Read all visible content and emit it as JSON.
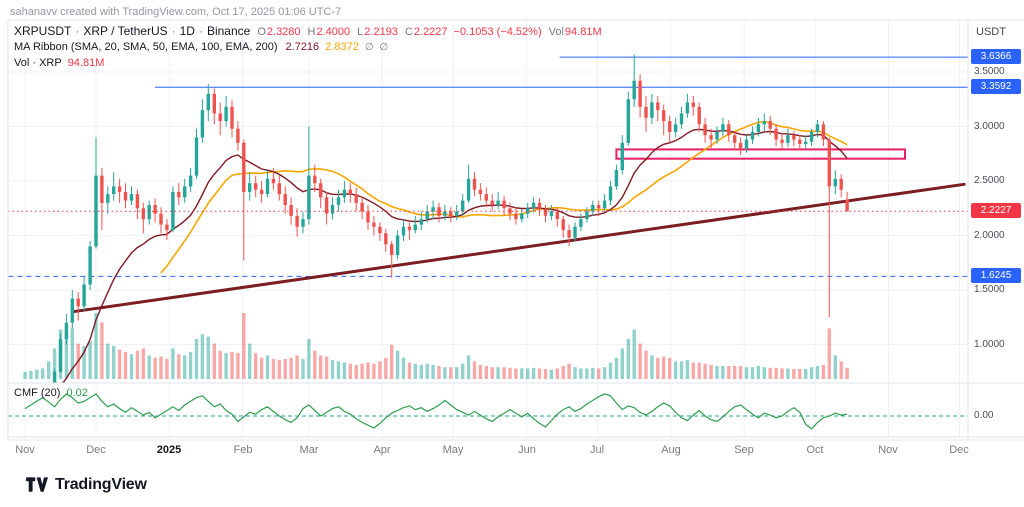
{
  "watermark": "sahanavv created with TradingView.com, Oct 17, 2025 01:06 UTC-7",
  "legend": {
    "symbol": "XRPUSDT",
    "separator": "·",
    "description": "XRP / TetherUS",
    "interval": "1D",
    "exchange": "Binance",
    "ohlc": {
      "o_label": "O",
      "o_value": "2.3280",
      "h_label": "H",
      "h_value": "2.4000",
      "l_label": "L",
      "l_value": "2.2193",
      "c_label": "C",
      "c_value": "2.2227",
      "change": "−0.1053 (−4.52%)",
      "vol_label": "Vol",
      "vol_value": "94.81M"
    },
    "ma_ribbon": {
      "label": "MA Ribbon (SMA, 20, SMA, 50, EMA, 100, EMA, 200)",
      "value1": "2.7216",
      "value2": "2.8372",
      "icon1": "∅",
      "icon2": "∅"
    },
    "volume_row": {
      "label": "Vol · XRP",
      "value": "94.81M"
    }
  },
  "price_axis": {
    "currency": "USDT",
    "ticks": [
      {
        "label": "3.5000",
        "price": 3.5
      },
      {
        "label": "3.0000",
        "price": 3.0
      },
      {
        "label": "2.5000",
        "price": 2.5
      },
      {
        "label": "2.0000",
        "price": 2.0
      },
      {
        "label": "1.5000",
        "price": 1.5
      },
      {
        "label": "1.0000",
        "price": 1.0
      }
    ],
    "badges": [
      {
        "label": "3.6366",
        "price": 3.6366,
        "bg": "#2962ff"
      },
      {
        "label": "3.3592",
        "price": 3.3592,
        "bg": "#2962ff"
      },
      {
        "label": "2.2227",
        "price": 2.2227,
        "bg": "#f23645"
      },
      {
        "label": "1.6245",
        "price": 1.6245,
        "bg": "#2962ff"
      }
    ]
  },
  "time_axis": {
    "ticks": [
      {
        "label": "Nov",
        "day": 0
      },
      {
        "label": "Dec",
        "day": 30
      },
      {
        "label": "2025",
        "day": 61,
        "bold": true
      },
      {
        "label": "Feb",
        "day": 92
      },
      {
        "label": "Mar",
        "day": 120
      },
      {
        "label": "Apr",
        "day": 151
      },
      {
        "label": "May",
        "day": 181
      },
      {
        "label": "Jun",
        "day": 212
      },
      {
        "label": "Jul",
        "day": 242
      },
      {
        "label": "Aug",
        "day": 273
      },
      {
        "label": "Sep",
        "day": 304
      },
      {
        "label": "Oct",
        "day": 334
      },
      {
        "label": "Nov",
        "day": 365
      },
      {
        "label": "Dec",
        "day": 395
      }
    ]
  },
  "cmf_legend": {
    "label": "CMF (20)",
    "value": "0.02",
    "zero_label": "0.00"
  },
  "footer": {
    "brand": "TradingView"
  },
  "colors": {
    "up": "#26a69a",
    "down": "#ef5350",
    "vol_up": "rgba(38,166,154,0.5)",
    "vol_down": "rgba(239,83,80,0.5)",
    "grid": "#eef1f6",
    "border": "#e0e3eb",
    "axis_text": "#787b86",
    "text": "#131722",
    "red": "#f23645",
    "blue": "#2962ff",
    "pink": "#e91e63",
    "trend": "#7b1d21",
    "ma_fast": "#801922",
    "ma_slow": "#f7a600",
    "cmf_line": "#2f9e4f",
    "zero_line": "#26a69a"
  },
  "chart_data": {
    "type": "candlestick",
    "symbol": "XRPUSDT",
    "exchange": "Binance",
    "interval": "1D",
    "start": "2024-11-01",
    "end": "2025-10-17",
    "days_per_candle": 2.5,
    "last_ohlc": {
      "open": 2.328,
      "high": 2.4,
      "low": 2.2193,
      "close": 2.2227,
      "change": -0.1053,
      "change_pct": -4.52,
      "volume": "94.81M"
    },
    "ma_ribbon_values": [
      2.7216,
      2.8372
    ],
    "y_axis": {
      "min": 0.65,
      "max": 3.98,
      "ticks": [
        1.0,
        1.5,
        2.0,
        2.5,
        3.0,
        3.5
      ]
    },
    "candles": [
      [
        0.5,
        0.52,
        0.49,
        0.51,
        60
      ],
      [
        0.51,
        0.54,
        0.5,
        0.53,
        70
      ],
      [
        0.53,
        0.56,
        0.52,
        0.55,
        80
      ],
      [
        0.55,
        0.58,
        0.54,
        0.57,
        90
      ],
      [
        0.57,
        0.64,
        0.56,
        0.62,
        150
      ],
      [
        0.62,
        0.78,
        0.61,
        0.75,
        260
      ],
      [
        0.75,
        1.1,
        0.74,
        1.05,
        420
      ],
      [
        1.05,
        1.28,
        1.0,
        1.2,
        380
      ],
      [
        1.2,
        1.5,
        1.15,
        1.42,
        430
      ],
      [
        1.42,
        1.48,
        1.22,
        1.35,
        300
      ],
      [
        1.35,
        1.62,
        1.3,
        1.55,
        280
      ],
      [
        1.55,
        1.95,
        1.5,
        1.9,
        320
      ],
      [
        1.9,
        2.9,
        1.88,
        2.55,
        560
      ],
      [
        2.55,
        2.62,
        2.05,
        2.3,
        480
      ],
      [
        2.3,
        2.45,
        2.2,
        2.38,
        300
      ],
      [
        2.38,
        2.58,
        2.32,
        2.45,
        280
      ],
      [
        2.45,
        2.52,
        2.3,
        2.4,
        250
      ],
      [
        2.4,
        2.48,
        2.25,
        2.32,
        230
      ],
      [
        2.32,
        2.45,
        2.28,
        2.38,
        210
      ],
      [
        2.38,
        2.42,
        2.15,
        2.25,
        240
      ],
      [
        2.25,
        2.3,
        2.02,
        2.15,
        260
      ],
      [
        2.15,
        2.32,
        2.1,
        2.28,
        200
      ],
      [
        2.28,
        2.34,
        2.12,
        2.2,
        180
      ],
      [
        2.2,
        2.26,
        2.02,
        2.1,
        190
      ],
      [
        2.1,
        2.15,
        1.96,
        2.05,
        170
      ],
      [
        2.05,
        2.45,
        2.03,
        2.4,
        260
      ],
      [
        2.4,
        2.48,
        2.28,
        2.35,
        210
      ],
      [
        2.35,
        2.52,
        2.3,
        2.45,
        200
      ],
      [
        2.45,
        2.62,
        2.4,
        2.55,
        230
      ],
      [
        2.55,
        2.98,
        2.52,
        2.9,
        340
      ],
      [
        2.9,
        3.25,
        2.85,
        3.15,
        380
      ],
      [
        3.15,
        3.39,
        3.05,
        3.3,
        360
      ],
      [
        3.3,
        3.35,
        3.02,
        3.12,
        300
      ],
      [
        3.12,
        3.22,
        2.92,
        3.05,
        240
      ],
      [
        3.05,
        3.28,
        3.0,
        3.18,
        220
      ],
      [
        3.18,
        3.24,
        2.9,
        2.98,
        230
      ],
      [
        2.98,
        3.05,
        2.78,
        2.85,
        220
      ],
      [
        2.85,
        2.88,
        1.77,
        2.4,
        560
      ],
      [
        2.4,
        2.58,
        2.32,
        2.48,
        300
      ],
      [
        2.48,
        2.55,
        2.35,
        2.42,
        220
      ],
      [
        2.42,
        2.5,
        2.3,
        2.38,
        180
      ],
      [
        2.38,
        2.6,
        2.35,
        2.52,
        200
      ],
      [
        2.52,
        2.62,
        2.42,
        2.48,
        170
      ],
      [
        2.48,
        2.55,
        2.32,
        2.38,
        160
      ],
      [
        2.38,
        2.45,
        2.2,
        2.28,
        170
      ],
      [
        2.28,
        2.35,
        2.1,
        2.18,
        180
      ],
      [
        2.18,
        2.25,
        1.99,
        2.08,
        200
      ],
      [
        2.08,
        2.22,
        2.02,
        2.15,
        170
      ],
      [
        2.15,
        3.0,
        2.1,
        2.55,
        340
      ],
      [
        2.55,
        2.65,
        2.4,
        2.48,
        240
      ],
      [
        2.48,
        2.52,
        2.25,
        2.35,
        200
      ],
      [
        2.35,
        2.4,
        2.1,
        2.2,
        190
      ],
      [
        2.2,
        2.35,
        2.15,
        2.28,
        160
      ],
      [
        2.28,
        2.42,
        2.22,
        2.35,
        150
      ],
      [
        2.35,
        2.5,
        2.3,
        2.42,
        140
      ],
      [
        2.42,
        2.48,
        2.3,
        2.38,
        130
      ],
      [
        2.38,
        2.44,
        2.22,
        2.3,
        120
      ],
      [
        2.3,
        2.36,
        2.15,
        2.22,
        130
      ],
      [
        2.22,
        2.28,
        2.05,
        2.12,
        140
      ],
      [
        2.12,
        2.18,
        2.0,
        2.08,
        130
      ],
      [
        2.08,
        2.12,
        1.95,
        2.02,
        150
      ],
      [
        2.02,
        2.06,
        1.85,
        1.92,
        180
      ],
      [
        1.92,
        1.95,
        1.61,
        1.82,
        290
      ],
      [
        1.82,
        2.05,
        1.78,
        2.0,
        240
      ],
      [
        2.0,
        2.15,
        1.95,
        2.08,
        180
      ],
      [
        2.08,
        2.12,
        1.96,
        2.05,
        140
      ],
      [
        2.05,
        2.18,
        2.02,
        2.1,
        130
      ],
      [
        2.1,
        2.22,
        2.05,
        2.15,
        120
      ],
      [
        2.15,
        2.28,
        2.12,
        2.22,
        130
      ],
      [
        2.22,
        2.32,
        2.15,
        2.26,
        120
      ],
      [
        2.26,
        2.3,
        2.12,
        2.18,
        110
      ],
      [
        2.18,
        2.28,
        2.14,
        2.22,
        100
      ],
      [
        2.22,
        2.26,
        2.12,
        2.18,
        100
      ],
      [
        2.18,
        2.28,
        2.14,
        2.22,
        100
      ],
      [
        2.22,
        2.38,
        2.18,
        2.32,
        130
      ],
      [
        2.32,
        2.65,
        2.3,
        2.52,
        200
      ],
      [
        2.52,
        2.58,
        2.36,
        2.42,
        150
      ],
      [
        2.42,
        2.48,
        2.32,
        2.38,
        120
      ],
      [
        2.38,
        2.44,
        2.26,
        2.32,
        110
      ],
      [
        2.32,
        2.38,
        2.22,
        2.28,
        100
      ],
      [
        2.28,
        2.4,
        2.24,
        2.32,
        100
      ],
      [
        2.32,
        2.36,
        2.18,
        2.25,
        100
      ],
      [
        2.25,
        2.3,
        2.14,
        2.2,
        95
      ],
      [
        2.2,
        2.26,
        2.1,
        2.15,
        90
      ],
      [
        2.15,
        2.24,
        2.12,
        2.2,
        90
      ],
      [
        2.2,
        2.3,
        2.16,
        2.25,
        90
      ],
      [
        2.25,
        2.35,
        2.21,
        2.3,
        95
      ],
      [
        2.3,
        2.34,
        2.18,
        2.24,
        90
      ],
      [
        2.24,
        2.28,
        2.12,
        2.18,
        85
      ],
      [
        2.18,
        2.28,
        2.14,
        2.22,
        80
      ],
      [
        2.22,
        2.26,
        2.08,
        2.15,
        90
      ],
      [
        2.15,
        2.18,
        1.98,
        2.05,
        110
      ],
      [
        2.05,
        2.1,
        1.9,
        1.98,
        130
      ],
      [
        1.98,
        2.12,
        1.95,
        2.08,
        100
      ],
      [
        2.08,
        2.2,
        2.04,
        2.15,
        90
      ],
      [
        2.15,
        2.26,
        2.12,
        2.22,
        90
      ],
      [
        2.22,
        2.32,
        2.18,
        2.28,
        95
      ],
      [
        2.28,
        2.32,
        2.18,
        2.25,
        90
      ],
      [
        2.25,
        2.38,
        2.22,
        2.32,
        100
      ],
      [
        2.32,
        2.5,
        2.28,
        2.45,
        140
      ],
      [
        2.45,
        2.65,
        2.42,
        2.6,
        180
      ],
      [
        2.6,
        2.92,
        2.56,
        2.85,
        260
      ],
      [
        2.85,
        3.32,
        2.82,
        3.25,
        340
      ],
      [
        3.25,
        3.66,
        3.18,
        3.42,
        420
      ],
      [
        3.42,
        3.48,
        3.08,
        3.18,
        300
      ],
      [
        3.18,
        3.28,
        2.95,
        3.08,
        240
      ],
      [
        3.08,
        3.3,
        3.02,
        3.22,
        200
      ],
      [
        3.22,
        3.28,
        3.05,
        3.15,
        180
      ],
      [
        3.15,
        3.2,
        2.92,
        3.05,
        190
      ],
      [
        3.05,
        3.1,
        2.85,
        2.95,
        180
      ],
      [
        2.95,
        3.08,
        2.9,
        3.02,
        150
      ],
      [
        3.02,
        3.18,
        2.98,
        3.12,
        150
      ],
      [
        3.12,
        3.3,
        3.08,
        3.22,
        160
      ],
      [
        3.22,
        3.28,
        3.1,
        3.18,
        140
      ],
      [
        3.18,
        3.22,
        2.95,
        3.02,
        140
      ],
      [
        3.02,
        3.08,
        2.85,
        2.92,
        130
      ],
      [
        2.92,
        2.98,
        2.8,
        2.88,
        120
      ],
      [
        2.88,
        3.0,
        2.84,
        2.95,
        110
      ],
      [
        2.95,
        3.08,
        2.91,
        3.02,
        110
      ],
      [
        3.02,
        3.06,
        2.86,
        2.92,
        110
      ],
      [
        2.92,
        2.96,
        2.78,
        2.85,
        110
      ],
      [
        2.85,
        2.9,
        2.74,
        2.8,
        110
      ],
      [
        2.8,
        2.92,
        2.76,
        2.88,
        100
      ],
      [
        2.88,
        3.0,
        2.84,
        2.95,
        100
      ],
      [
        2.95,
        3.08,
        2.91,
        3.02,
        110
      ],
      [
        3.02,
        3.12,
        2.96,
        3.05,
        100
      ],
      [
        3.05,
        3.1,
        2.92,
        2.98,
        95
      ],
      [
        2.98,
        3.02,
        2.82,
        2.88,
        95
      ],
      [
        2.88,
        2.94,
        2.78,
        2.85,
        90
      ],
      [
        2.85,
        2.98,
        2.81,
        2.92,
        90
      ],
      [
        2.92,
        2.96,
        2.82,
        2.88,
        85
      ],
      [
        2.88,
        2.92,
        2.78,
        2.84,
        85
      ],
      [
        2.84,
        2.92,
        2.8,
        2.86,
        85
      ],
      [
        2.86,
        2.98,
        2.82,
        2.95,
        100
      ],
      [
        2.95,
        3.06,
        2.9,
        3.02,
        110
      ],
      [
        3.02,
        3.05,
        2.82,
        2.88,
        120
      ],
      [
        2.88,
        2.9,
        1.25,
        2.45,
        430
      ],
      [
        2.45,
        2.6,
        2.38,
        2.52,
        200
      ],
      [
        2.52,
        2.56,
        2.35,
        2.42,
        150
      ],
      [
        2.328,
        2.4,
        2.2193,
        2.2227,
        95
      ]
    ],
    "cmf": {
      "period": 20,
      "last": 0.02,
      "values": [
        0.08,
        0.12,
        0.16,
        0.2,
        0.15,
        0.1,
        0.18,
        0.24,
        0.2,
        0.14,
        0.16,
        0.2,
        0.24,
        0.16,
        0.1,
        0.13,
        0.08,
        0.04,
        0.09,
        0.05,
        0.01,
        0.04,
        -0.02,
        0.02,
        0.06,
        0.1,
        0.06,
        0.12,
        0.16,
        0.2,
        0.22,
        0.16,
        0.1,
        0.13,
        0.06,
        0.02,
        -0.06,
        -0.01,
        0.04,
        0.02,
        0.07,
        0.1,
        0.05,
        0.0,
        -0.04,
        -0.07,
        -0.02,
        0.08,
        0.12,
        0.06,
        0.0,
        0.04,
        0.08,
        0.1,
        0.05,
        0.02,
        -0.03,
        -0.07,
        -0.1,
        -0.13,
        -0.08,
        -0.02,
        0.03,
        0.06,
        0.09,
        0.11,
        0.07,
        0.09,
        0.05,
        0.08,
        0.12,
        0.17,
        0.12,
        0.07,
        0.04,
        0.01,
        0.05,
        0.01,
        -0.03,
        -0.06,
        -0.01,
        0.03,
        0.07,
        0.03,
        -0.01,
        0.03,
        -0.03,
        -0.08,
        -0.12,
        -0.05,
        0.02,
        0.07,
        0.1,
        0.05,
        0.08,
        0.13,
        0.17,
        0.21,
        0.24,
        0.22,
        0.14,
        0.07,
        0.11,
        0.09,
        0.04,
        0.01,
        0.05,
        0.1,
        0.14,
        0.11,
        0.04,
        -0.02,
        -0.05,
        0.01,
        0.06,
        0.0,
        -0.04,
        -0.06,
        -0.01,
        0.05,
        0.1,
        0.12,
        0.07,
        0.02,
        -0.02,
        0.03,
        0.01,
        -0.02,
        0.0,
        0.05,
        0.09,
        0.04,
        -0.09,
        -0.14,
        -0.07,
        -0.02,
        0.0,
        0.03,
        0.01,
        0.02
      ]
    },
    "drawings": [
      {
        "type": "hline",
        "price": 3.6366,
        "from_day": 226,
        "color": "#2962ff",
        "style": "solid"
      },
      {
        "type": "hline",
        "price": 3.3592,
        "from_day": 55,
        "color": "#2962ff",
        "style": "solid"
      },
      {
        "type": "hline",
        "price": 1.6245,
        "from_day": -7,
        "color": "#2962ff",
        "style": "dashed"
      },
      {
        "type": "price_line",
        "price": 2.2227,
        "color": "#f23645",
        "style": "dotted"
      },
      {
        "type": "trendline",
        "d1": 20,
        "p1": 1.3,
        "d2": 397,
        "p2": 2.47,
        "color": "#7b1d21",
        "width": 3
      },
      {
        "type": "box",
        "d1": 250,
        "d2": 372,
        "p1": 2.705,
        "p2": 2.79,
        "color": "#e91e63",
        "width": 2
      }
    ]
  }
}
